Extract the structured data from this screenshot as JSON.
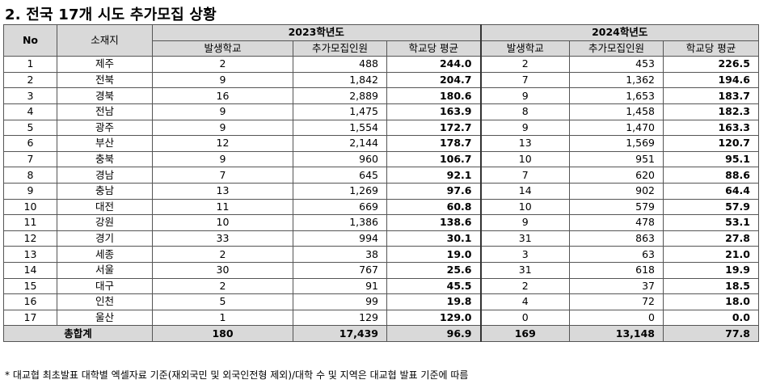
{
  "title": "2. 전국 17개 시도 추가모집 상황",
  "header": {
    "no": "No",
    "region": "소재지",
    "year2023": "2023학년도",
    "year2024": "2024학년도",
    "sub": [
      "발생학교",
      "추가모집인원",
      "학교당 평균",
      "발생학교",
      "추가모집인원",
      "학교당 평균"
    ]
  },
  "rows": [
    {
      "no": "1",
      "region": "제주",
      "s23": "2",
      "n23": "488",
      "a23": "244.0",
      "s24": "2",
      "n24": "453",
      "a24": "226.5"
    },
    {
      "no": "2",
      "region": "전북",
      "s23": "9",
      "n23": "1,842",
      "a23": "204.7",
      "s24": "7",
      "n24": "1,362",
      "a24": "194.6"
    },
    {
      "no": "3",
      "region": "경북",
      "s23": "16",
      "n23": "2,889",
      "a23": "180.6",
      "s24": "9",
      "n24": "1,653",
      "a24": "183.7"
    },
    {
      "no": "4",
      "region": "전남",
      "s23": "9",
      "n23": "1,475",
      "a23": "163.9",
      "s24": "8",
      "n24": "1,458",
      "a24": "182.3"
    },
    {
      "no": "5",
      "region": "광주",
      "s23": "9",
      "n23": "1,554",
      "a23": "172.7",
      "s24": "9",
      "n24": "1,470",
      "a24": "163.3"
    },
    {
      "no": "6",
      "region": "부산",
      "s23": "12",
      "n23": "2,144",
      "a23": "178.7",
      "s24": "13",
      "n24": "1,569",
      "a24": "120.7"
    },
    {
      "no": "7",
      "region": "충북",
      "s23": "9",
      "n23": "960",
      "a23": "106.7",
      "s24": "10",
      "n24": "951",
      "a24": "95.1"
    },
    {
      "no": "8",
      "region": "경남",
      "s23": "7",
      "n23": "645",
      "a23": "92.1",
      "s24": "7",
      "n24": "620",
      "a24": "88.6"
    },
    {
      "no": "9",
      "region": "충남",
      "s23": "13",
      "n23": "1,269",
      "a23": "97.6",
      "s24": "14",
      "n24": "902",
      "a24": "64.4"
    },
    {
      "no": "10",
      "region": "대전",
      "s23": "11",
      "n23": "669",
      "a23": "60.8",
      "s24": "10",
      "n24": "579",
      "a24": "57.9"
    },
    {
      "no": "11",
      "region": "강원",
      "s23": "10",
      "n23": "1,386",
      "a23": "138.6",
      "s24": "9",
      "n24": "478",
      "a24": "53.1"
    },
    {
      "no": "12",
      "region": "경기",
      "s23": "33",
      "n23": "994",
      "a23": "30.1",
      "s24": "31",
      "n24": "863",
      "a24": "27.8"
    },
    {
      "no": "13",
      "region": "세종",
      "s23": "2",
      "n23": "38",
      "a23": "19.0",
      "s24": "3",
      "n24": "63",
      "a24": "21.0"
    },
    {
      "no": "14",
      "region": "서울",
      "s23": "30",
      "n23": "767",
      "a23": "25.6",
      "s24": "31",
      "n24": "618",
      "a24": "19.9"
    },
    {
      "no": "15",
      "region": "대구",
      "s23": "2",
      "n23": "91",
      "a23": "45.5",
      "s24": "2",
      "n24": "37",
      "a24": "18.5"
    },
    {
      "no": "16",
      "region": "인천",
      "s23": "5",
      "n23": "99",
      "a23": "19.8",
      "s24": "4",
      "n24": "72",
      "a24": "18.0"
    },
    {
      "no": "17",
      "region": "울산",
      "s23": "1",
      "n23": "129",
      "a23": "129.0",
      "s24": "0",
      "n24": "0",
      "a24": "0.0"
    }
  ],
  "total": {
    "label": "총합계",
    "s23": "180",
    "n23": "17,439",
    "a23": "96.9",
    "s24": "169",
    "n24": "13,148",
    "a24": "77.8"
  },
  "footnote": "* 대교협 최초발표 대학별 엑셀자료 기준(재외국민 및 외국인전형 제외)/대학 수 및 지역은 대교협 발표 기준에 따름"
}
